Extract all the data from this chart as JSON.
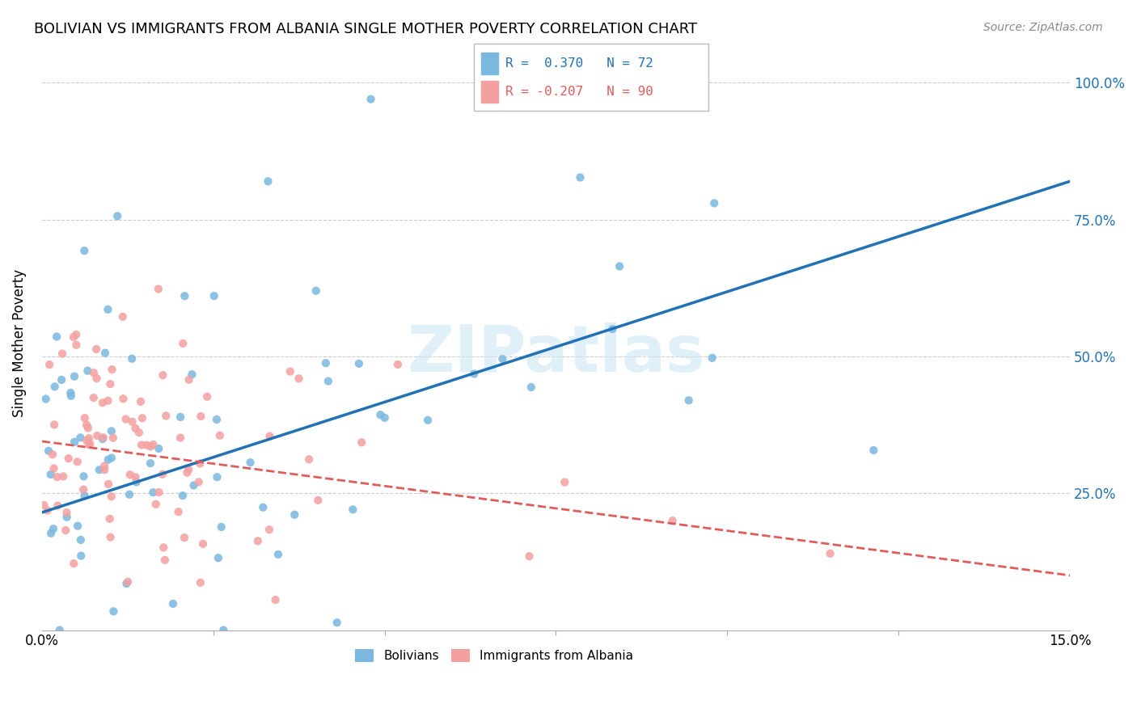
{
  "title": "BOLIVIAN VS IMMIGRANTS FROM ALBANIA SINGLE MOTHER POVERTY CORRELATION CHART",
  "source": "Source: ZipAtlas.com",
  "ylabel": "Single Mother Poverty",
  "xlim": [
    0.0,
    0.15
  ],
  "ylim": [
    0.0,
    1.05
  ],
  "watermark": "ZIPatlas",
  "legend_r_blue": "R =  0.370",
  "legend_n_blue": "N = 72",
  "legend_r_pink": "R = -0.207",
  "legend_n_pink": "N = 90",
  "blue_scatter_color": "#7ab8e0",
  "pink_scatter_color": "#f4a0a0",
  "trendline_blue_color": "#2171b5",
  "trendline_pink_color": "#e05c5c",
  "blue_trendline_x": [
    0.0,
    0.15
  ],
  "blue_trendline_y": [
    0.215,
    0.82
  ],
  "pink_trendline_x": [
    0.0,
    0.15
  ],
  "pink_trendline_y": [
    0.345,
    0.1
  ],
  "grid_color": "#cccccc",
  "right_tick_color": "#2171b5",
  "ytick_positions": [
    0.25,
    0.5,
    0.75,
    1.0
  ],
  "ytick_labels": [
    "25.0%",
    "50.0%",
    "75.0%",
    "100.0%"
  ],
  "xtick_positions": [
    0.0,
    0.15
  ],
  "xtick_labels": [
    "0.0%",
    "15.0%"
  ],
  "bottom_minor_ticks": [
    0.0,
    0.025,
    0.05,
    0.075,
    0.1,
    0.125,
    0.15
  ]
}
